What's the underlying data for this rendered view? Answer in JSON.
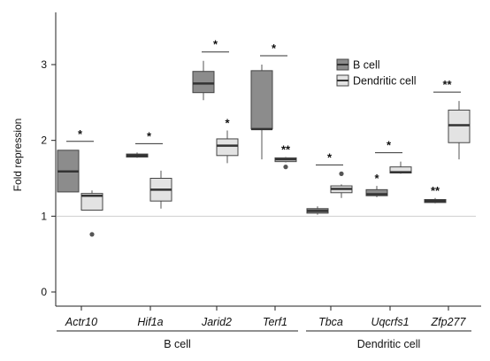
{
  "chart_data": {
    "type": "box",
    "ylabel": "Fold repression",
    "ylim": [
      -0.35,
      3.7
    ],
    "yticks": [
      0,
      1,
      2,
      3
    ],
    "reference_line": 1,
    "categories": [
      "Actr10",
      "Hif1a",
      "Jarid2",
      "Terf1",
      "Tbca",
      "Uqcrfs1",
      "Zfp277"
    ],
    "groups": [
      {
        "label": "B cell",
        "categories": [
          "Actr10",
          "Hif1a",
          "Jarid2",
          "Terf1"
        ]
      },
      {
        "label": "Dendritic cell",
        "categories": [
          "Tbca",
          "Uqcrfs1",
          "Zfp277"
        ]
      }
    ],
    "series": [
      {
        "name": "B cell",
        "color": "#8c8c8c",
        "boxes": [
          {
            "min": 1.32,
            "q1": 1.32,
            "median": 1.59,
            "q3": 1.87,
            "max": 1.87,
            "outliers": []
          },
          {
            "min": 1.77,
            "q1": 1.78,
            "median": 1.8,
            "q3": 1.82,
            "max": 1.84,
            "outliers": []
          },
          {
            "min": 2.53,
            "q1": 2.63,
            "median": 2.75,
            "q3": 2.91,
            "max": 3.05,
            "outliers": []
          },
          {
            "min": 1.75,
            "q1": 2.15,
            "median": 2.15,
            "q3": 2.92,
            "max": 3.0,
            "outliers": []
          },
          {
            "min": 1.02,
            "q1": 1.04,
            "median": 1.07,
            "q3": 1.1,
            "max": 1.13,
            "outliers": []
          },
          {
            "min": 1.25,
            "q1": 1.27,
            "median": 1.29,
            "q3": 1.35,
            "max": 1.4,
            "outliers": []
          },
          {
            "min": 1.17,
            "q1": 1.18,
            "median": 1.2,
            "q3": 1.22,
            "max": 1.24,
            "outliers": []
          }
        ]
      },
      {
        "name": "Dendritic cell",
        "color": "#e3e3e3",
        "boxes": [
          {
            "min": 1.08,
            "q1": 1.08,
            "median": 1.27,
            "q3": 1.3,
            "max": 1.34,
            "outliers": [
              0.76
            ]
          },
          {
            "min": 1.1,
            "q1": 1.2,
            "median": 1.35,
            "q3": 1.5,
            "max": 1.6,
            "outliers": []
          },
          {
            "min": 1.7,
            "q1": 1.8,
            "median": 1.93,
            "q3": 2.02,
            "max": 2.13,
            "outliers": []
          },
          {
            "min": 1.71,
            "q1": 1.72,
            "median": 1.75,
            "q3": 1.77,
            "max": 1.78,
            "outliers": [
              1.65
            ]
          },
          {
            "min": 1.24,
            "q1": 1.31,
            "median": 1.36,
            "q3": 1.4,
            "max": 1.42,
            "outliers": [
              1.56
            ]
          },
          {
            "min": 1.56,
            "q1": 1.57,
            "median": 1.58,
            "q3": 1.65,
            "max": 1.72,
            "outliers": []
          },
          {
            "min": 1.75,
            "q1": 1.97,
            "median": 2.2,
            "q3": 2.4,
            "max": 2.52,
            "outliers": []
          }
        ]
      }
    ],
    "significance": [
      {
        "category": "Actr10",
        "label": "*",
        "span": "both"
      },
      {
        "category": "Hif1a",
        "label": "*",
        "span": "both"
      },
      {
        "category": "Jarid2",
        "label": "*",
        "span": "both"
      },
      {
        "category": "Jarid2",
        "label": "*",
        "span": "Dendritic cell"
      },
      {
        "category": "Terf1",
        "label": "*",
        "span": "both"
      },
      {
        "category": "Terf1",
        "label": "**",
        "span": "Dendritic cell"
      },
      {
        "category": "Tbca",
        "label": "*",
        "span": "both"
      },
      {
        "category": "Uqcrfs1",
        "label": "*",
        "span": "B cell"
      },
      {
        "category": "Uqcrfs1",
        "label": "*",
        "span": "both"
      },
      {
        "category": "Zfp277",
        "label": "**",
        "span": "both"
      },
      {
        "category": "Zfp277",
        "label": "**",
        "span": "B cell"
      }
    ],
    "legend": {
      "position": "top-right",
      "entries": [
        "B cell",
        "Dendritic cell"
      ]
    }
  }
}
